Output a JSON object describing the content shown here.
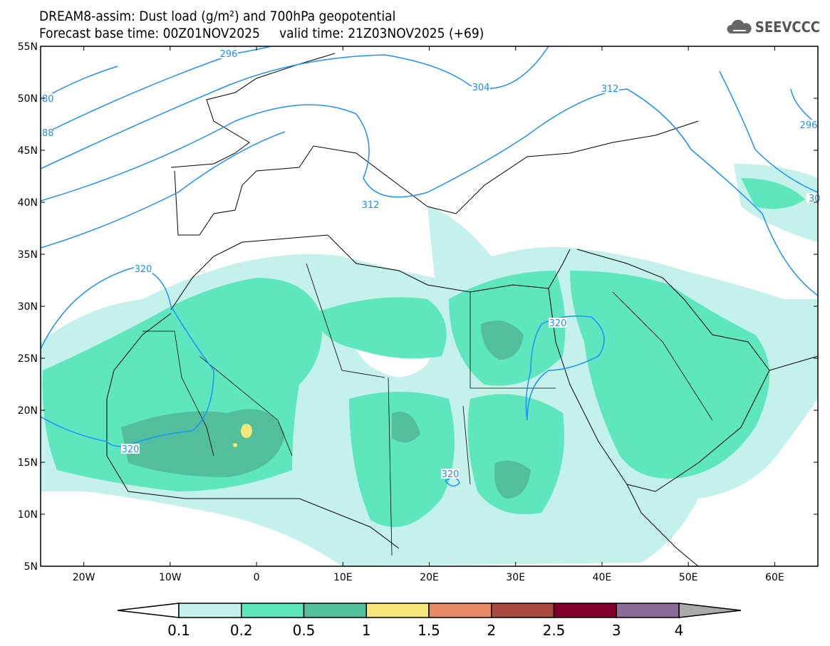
{
  "header": {
    "title_line1": "DREAM8-assim: Dust load (g/m²) and 700hPa geopotential",
    "title_line2": "Forecast base time: 00Z01NOV2025     valid time: 21Z03NOV2025 (+69)",
    "logo_text": "SEEVCCC"
  },
  "map": {
    "lat_labels": [
      "55N",
      "50N",
      "45N",
      "40N",
      "35N",
      "30N",
      "25N",
      "20N",
      "15N",
      "10N",
      "5N"
    ],
    "lon_labels": [
      "20W",
      "10W",
      "0",
      "10E",
      "20E",
      "30E",
      "40E",
      "50E",
      "60E"
    ],
    "contour_labels": [
      "296",
      "304",
      "312",
      "312",
      "320",
      "320",
      "320",
      "320",
      "296",
      "30",
      "80",
      "88"
    ],
    "contour_color": "#1e90ff"
  },
  "colorbar": {
    "labels": [
      "0.1",
      "0.2",
      "0.5",
      "1",
      "1.5",
      "2",
      "2.5",
      "3",
      "4"
    ],
    "colors": [
      "#c4f2ea",
      "#5ee6be",
      "#52be9c",
      "#f5e678",
      "#e88a66",
      "#a84a40",
      "#80002a",
      "#8c6a9a"
    ],
    "under_color": "#ffffff",
    "over_color": "#aaaaaa"
  }
}
